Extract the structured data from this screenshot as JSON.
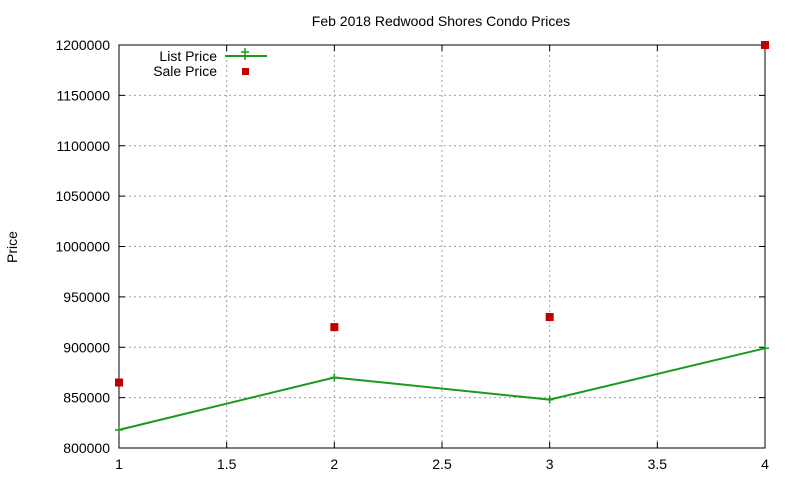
{
  "chart_data": {
    "type": "line",
    "title": "Feb 2018 Redwood Shores Condo Prices",
    "xlabel": "",
    "ylabel": "Price",
    "xlim": [
      1,
      4
    ],
    "ylim": [
      800000,
      1200000
    ],
    "xticks": [
      "1",
      "1.5",
      "2",
      "2.5",
      "3",
      "3.5",
      "4"
    ],
    "yticks": [
      "800000",
      "850000",
      "900000",
      "950000",
      "1000000",
      "1050000",
      "1100000",
      "1150000",
      "1200000"
    ],
    "grid": true,
    "legend_position": "top-left",
    "series": [
      {
        "name": "List Price",
        "style": "line-with-plus-markers",
        "color": "#1a9a1a",
        "x": [
          1,
          2,
          3,
          4
        ],
        "y": [
          818000,
          870000,
          848000,
          899000
        ]
      },
      {
        "name": "Sale Price",
        "style": "square-markers",
        "color": "#c00000",
        "x": [
          1,
          2,
          3,
          4
        ],
        "y": [
          865000,
          920000,
          930000,
          1200000
        ]
      }
    ]
  }
}
